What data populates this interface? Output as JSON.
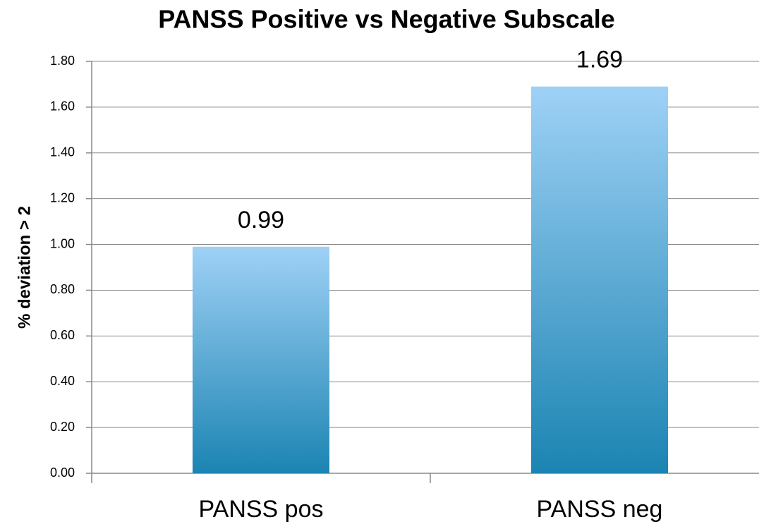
{
  "chart_data": {
    "type": "bar",
    "title": "PANSS Positive vs Negative Subscale",
    "y_label": "% deviation > 2",
    "categories": [
      "PANSS pos",
      "PANSS neg"
    ],
    "values": [
      0.99,
      1.69
    ],
    "color_top": "#9fd1f6",
    "color_bottom": "#1b84b2",
    "ylim": [
      0,
      1.8
    ],
    "yticks": [
      {
        "value": 0,
        "label": "0.00"
      },
      {
        "value": 0.2,
        "label": "0.20"
      },
      {
        "value": 0.4,
        "label": "0.40"
      },
      {
        "value": 0.6,
        "label": "0.60"
      },
      {
        "value": 0.8,
        "label": "0.80"
      },
      {
        "value": 1,
        "label": "1.00"
      },
      {
        "value": 1.2,
        "label": "1.20"
      },
      {
        "value": 1.4,
        "label": "1.40"
      },
      {
        "value": 1.6,
        "label": "1.60"
      },
      {
        "value": 1.8,
        "label": "1.80"
      }
    ],
    "grid": true
  }
}
